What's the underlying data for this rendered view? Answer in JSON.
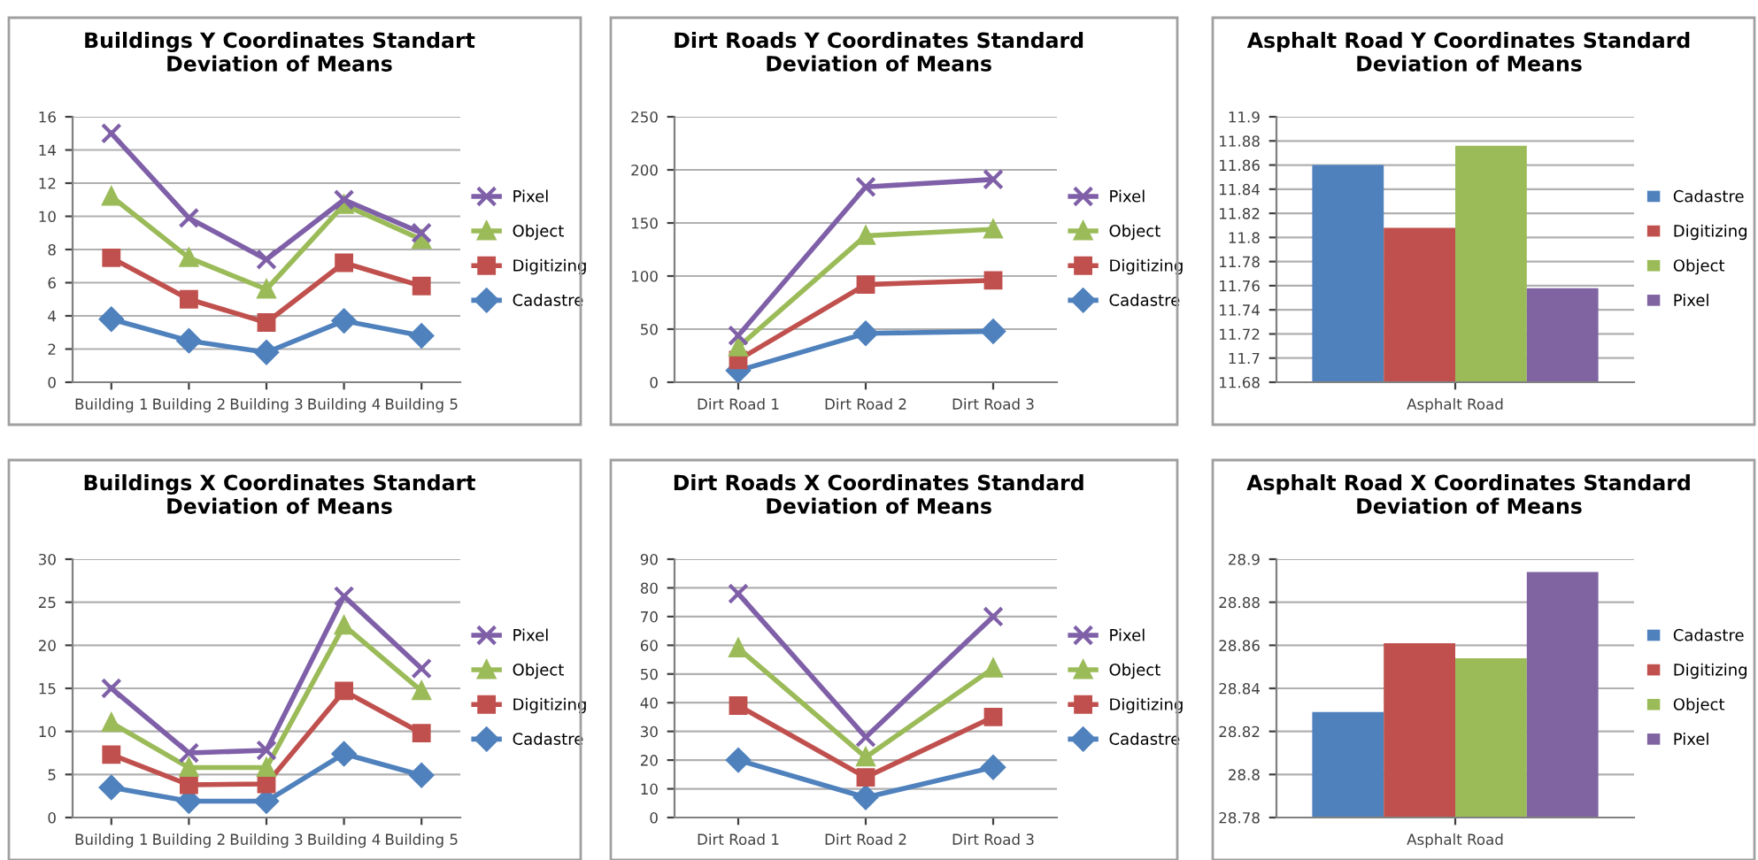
{
  "chart_data": [
    {
      "type": "line",
      "title": "Buildings Y Coordinates Standart Deviation of Means",
      "categories": [
        "Building 1",
        "Building 2",
        "Building 3",
        "Building 4",
        "Building 5"
      ],
      "ylim": [
        0,
        16
      ],
      "yticks": [
        0,
        2,
        4,
        6,
        8,
        10,
        12,
        14,
        16
      ],
      "grid": "y",
      "legend": "right",
      "series": [
        {
          "name": "Pixel",
          "color": "#7f60a8",
          "marker": "cross",
          "values": [
            15,
            9.9,
            7.4,
            11,
            9
          ]
        },
        {
          "name": "Object",
          "color": "#9bbb59",
          "marker": "triangle",
          "values": [
            11.2,
            7.5,
            5.6,
            10.7,
            8.6
          ]
        },
        {
          "name": "Digitizing",
          "color": "#c0504d",
          "marker": "square",
          "values": [
            7.5,
            5,
            3.6,
            7.2,
            5.8
          ]
        },
        {
          "name": "Cadastre",
          "color": "#4f81bd",
          "marker": "diamond",
          "values": [
            3.8,
            2.5,
            1.8,
            3.7,
            2.8
          ]
        }
      ]
    },
    {
      "type": "line",
      "title": "Dirt Roads Y Coordinates Standard Deviation of Means",
      "categories": [
        "Dirt Road 1",
        "Dirt Road 2",
        "Dirt Road 3"
      ],
      "ylim": [
        0,
        250
      ],
      "yticks": [
        0,
        50,
        100,
        150,
        200,
        250
      ],
      "grid": "y",
      "legend": "right",
      "series": [
        {
          "name": "Pixel",
          "color": "#7f60a8",
          "marker": "cross",
          "values": [
            44,
            184,
            191
          ]
        },
        {
          "name": "Object",
          "color": "#9bbb59",
          "marker": "triangle",
          "values": [
            33,
            138,
            144
          ]
        },
        {
          "name": "Digitizing",
          "color": "#c0504d",
          "marker": "square",
          "values": [
            21,
            92,
            96
          ]
        },
        {
          "name": "Cadastre",
          "color": "#4f81bd",
          "marker": "diamond",
          "values": [
            11,
            46,
            48
          ]
        }
      ]
    },
    {
      "type": "bar",
      "title": "Asphalt Road Y Coordinates Standard Deviation of Means",
      "categories": [
        "Asphalt Road"
      ],
      "ylim": [
        11.68,
        11.9
      ],
      "yticks": [
        11.68,
        11.7,
        11.72,
        11.74,
        11.76,
        11.78,
        11.8,
        11.82,
        11.84,
        11.86,
        11.88,
        11.9
      ],
      "grid": "y",
      "legend": "right",
      "series": [
        {
          "name": "Cadastre",
          "color": "#4f81bd",
          "values": [
            11.86
          ]
        },
        {
          "name": "Digitizing",
          "color": "#c0504d",
          "values": [
            11.808
          ]
        },
        {
          "name": "Object",
          "color": "#9bbb59",
          "values": [
            11.876
          ]
        },
        {
          "name": "Pixel",
          "color": "#8064a2",
          "values": [
            11.758
          ]
        }
      ]
    },
    {
      "type": "line",
      "title": "Buildings X Coordinates Standart Deviation of Means",
      "categories": [
        "Building 1",
        "Building 2",
        "Building 3",
        "Building 4",
        "Building 5"
      ],
      "ylim": [
        0,
        30
      ],
      "yticks": [
        0,
        5,
        10,
        15,
        20,
        25,
        30
      ],
      "grid": "y",
      "legend": "right",
      "series": [
        {
          "name": "Pixel",
          "color": "#7f60a8",
          "marker": "cross",
          "values": [
            15,
            7.5,
            7.8,
            25.7,
            17.3
          ]
        },
        {
          "name": "Object",
          "color": "#9bbb59",
          "marker": "triangle",
          "values": [
            11,
            5.8,
            5.8,
            22.3,
            14.7
          ]
        },
        {
          "name": "Digitizing",
          "color": "#c0504d",
          "marker": "square",
          "values": [
            7.3,
            3.8,
            3.9,
            14.7,
            9.8
          ]
        },
        {
          "name": "Cadastre",
          "color": "#4f81bd",
          "marker": "diamond",
          "values": [
            3.5,
            1.9,
            1.9,
            7.4,
            4.9
          ]
        }
      ]
    },
    {
      "type": "line",
      "title": "Dirt Roads X Coordinates Standard Deviation of Means",
      "categories": [
        "Dirt Road 1",
        "Dirt Road 2",
        "Dirt Road 3"
      ],
      "ylim": [
        0,
        90
      ],
      "yticks": [
        0,
        10,
        20,
        30,
        40,
        50,
        60,
        70,
        80,
        90
      ],
      "grid": "y",
      "legend": "right",
      "series": [
        {
          "name": "Pixel",
          "color": "#7f60a8",
          "marker": "cross",
          "values": [
            78,
            28,
            70
          ]
        },
        {
          "name": "Object",
          "color": "#9bbb59",
          "marker": "triangle",
          "values": [
            59,
            21,
            52
          ]
        },
        {
          "name": "Digitizing",
          "color": "#c0504d",
          "marker": "square",
          "values": [
            39,
            14,
            35
          ]
        },
        {
          "name": "Cadastre",
          "color": "#4f81bd",
          "marker": "diamond",
          "values": [
            20,
            7,
            17.5
          ]
        }
      ]
    },
    {
      "type": "bar",
      "title": "Asphalt Road X Coordinates Standard Deviation of Means",
      "categories": [
        "Asphalt Road"
      ],
      "ylim": [
        28.78,
        28.9
      ],
      "yticks": [
        28.78,
        28.8,
        28.82,
        28.84,
        28.86,
        28.88,
        28.9
      ],
      "grid": "y",
      "legend": "right",
      "series": [
        {
          "name": "Cadastre",
          "color": "#4f81bd",
          "values": [
            28.829
          ]
        },
        {
          "name": "Digitizing",
          "color": "#c0504d",
          "values": [
            28.861
          ]
        },
        {
          "name": "Object",
          "color": "#9bbb59",
          "values": [
            28.854
          ]
        },
        {
          "name": "Pixel",
          "color": "#8064a2",
          "values": [
            28.894
          ]
        }
      ]
    }
  ]
}
